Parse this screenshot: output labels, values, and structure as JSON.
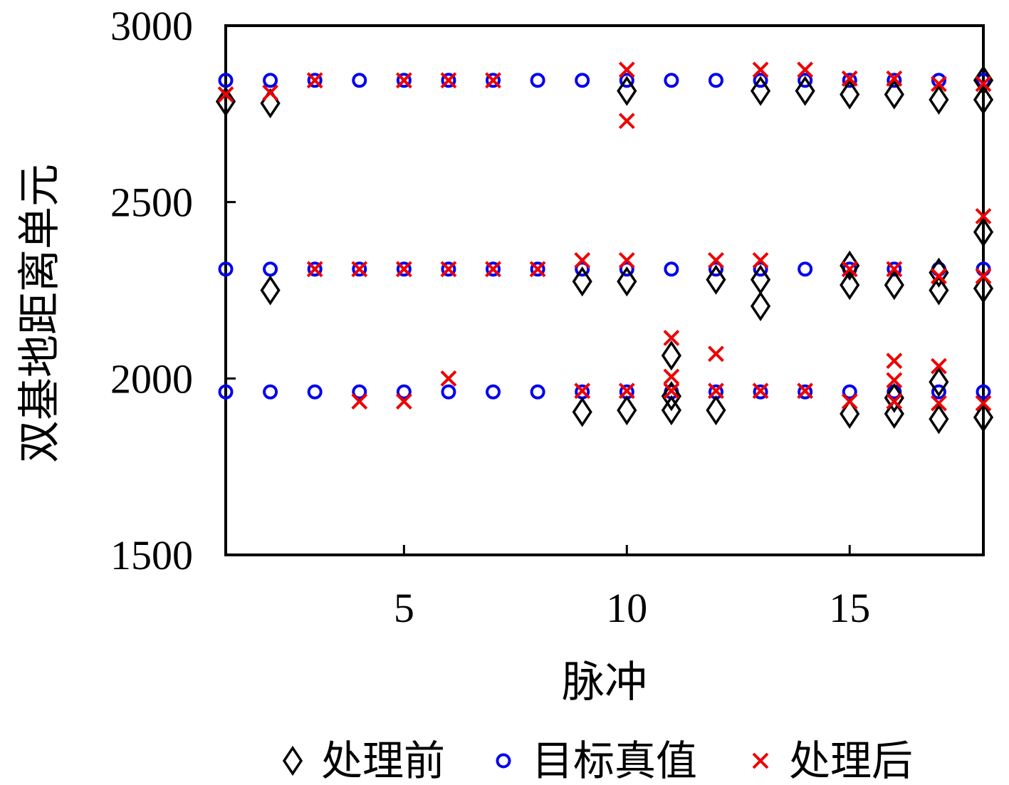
{
  "chart_data": {
    "type": "scatter",
    "title": "",
    "xlabel": "脉冲",
    "ylabel": "双基地距离单元",
    "xlim": [
      1,
      18
    ],
    "ylim": [
      1500,
      3000
    ],
    "xticks": [
      5,
      10,
      15
    ],
    "yticks": [
      1500,
      2000,
      2500,
      3000
    ],
    "grid": false,
    "legend_position": "bottom",
    "series": [
      {
        "name": "处理前",
        "marker": "diamond",
        "color": "#000000",
        "points": [
          [
            1,
            2785
          ],
          [
            2,
            2780
          ],
          [
            2,
            2250
          ],
          [
            9,
            2275
          ],
          [
            9,
            1905
          ],
          [
            10,
            2815
          ],
          [
            10,
            2275
          ],
          [
            10,
            1910
          ],
          [
            11,
            2065
          ],
          [
            11,
            1950
          ],
          [
            11,
            1910
          ],
          [
            12,
            2280
          ],
          [
            12,
            1910
          ],
          [
            13,
            2815
          ],
          [
            13,
            2280
          ],
          [
            13,
            2205
          ],
          [
            14,
            2815
          ],
          [
            15,
            2805
          ],
          [
            15,
            2320
          ],
          [
            15,
            2265
          ],
          [
            15,
            1900
          ],
          [
            16,
            2805
          ],
          [
            16,
            2265
          ],
          [
            16,
            1945
          ],
          [
            16,
            1900
          ],
          [
            17,
            2790
          ],
          [
            17,
            2300
          ],
          [
            17,
            2250
          ],
          [
            17,
            1990
          ],
          [
            17,
            1885
          ],
          [
            18,
            2845
          ],
          [
            18,
            2790
          ],
          [
            18,
            2415
          ],
          [
            18,
            2255
          ],
          [
            18,
            1890
          ]
        ]
      },
      {
        "name": "目标真值",
        "marker": "circle",
        "color": "#0000ee",
        "points": [
          [
            1,
            2845
          ],
          [
            2,
            2845
          ],
          [
            3,
            2845
          ],
          [
            4,
            2845
          ],
          [
            5,
            2845
          ],
          [
            6,
            2845
          ],
          [
            7,
            2845
          ],
          [
            8,
            2845
          ],
          [
            9,
            2845
          ],
          [
            10,
            2845
          ],
          [
            11,
            2845
          ],
          [
            12,
            2845
          ],
          [
            13,
            2845
          ],
          [
            14,
            2845
          ],
          [
            15,
            2845
          ],
          [
            16,
            2845
          ],
          [
            17,
            2845
          ],
          [
            18,
            2845
          ],
          [
            1,
            2310
          ],
          [
            2,
            2310
          ],
          [
            3,
            2310
          ],
          [
            4,
            2310
          ],
          [
            5,
            2310
          ],
          [
            6,
            2310
          ],
          [
            7,
            2310
          ],
          [
            8,
            2310
          ],
          [
            9,
            2310
          ],
          [
            10,
            2310
          ],
          [
            11,
            2310
          ],
          [
            12,
            2310
          ],
          [
            13,
            2310
          ],
          [
            14,
            2310
          ],
          [
            15,
            2310
          ],
          [
            16,
            2310
          ],
          [
            17,
            2310
          ],
          [
            18,
            2310
          ],
          [
            1,
            1962
          ],
          [
            2,
            1962
          ],
          [
            3,
            1962
          ],
          [
            4,
            1962
          ],
          [
            5,
            1962
          ],
          [
            6,
            1962
          ],
          [
            7,
            1962
          ],
          [
            8,
            1962
          ],
          [
            9,
            1962
          ],
          [
            10,
            1962
          ],
          [
            11,
            1962
          ],
          [
            12,
            1962
          ],
          [
            13,
            1962
          ],
          [
            14,
            1962
          ],
          [
            15,
            1962
          ],
          [
            16,
            1962
          ],
          [
            17,
            1962
          ],
          [
            18,
            1962
          ]
        ]
      },
      {
        "name": "处理后",
        "marker": "x",
        "color": "#ee0000",
        "points": [
          [
            1,
            2805
          ],
          [
            2,
            2810
          ],
          [
            3,
            2845
          ],
          [
            5,
            2845
          ],
          [
            6,
            2845
          ],
          [
            7,
            2845
          ],
          [
            10,
            2875
          ],
          [
            10,
            2730
          ],
          [
            13,
            2875
          ],
          [
            14,
            2875
          ],
          [
            15,
            2850
          ],
          [
            16,
            2850
          ],
          [
            17,
            2835
          ],
          [
            18,
            2835
          ],
          [
            3,
            2310
          ],
          [
            4,
            2310
          ],
          [
            5,
            2310
          ],
          [
            6,
            2310
          ],
          [
            7,
            2310
          ],
          [
            8,
            2310
          ],
          [
            9,
            2335
          ],
          [
            10,
            2335
          ],
          [
            12,
            2335
          ],
          [
            13,
            2335
          ],
          [
            15,
            2310
          ],
          [
            16,
            2310
          ],
          [
            17,
            2290
          ],
          [
            18,
            2290
          ],
          [
            18,
            2460
          ],
          [
            4,
            1935
          ],
          [
            5,
            1935
          ],
          [
            6,
            2000
          ],
          [
            9,
            1965
          ],
          [
            10,
            1965
          ],
          [
            11,
            2115
          ],
          [
            11,
            2005
          ],
          [
            11,
            1965
          ],
          [
            12,
            2070
          ],
          [
            12,
            1965
          ],
          [
            13,
            1965
          ],
          [
            14,
            1965
          ],
          [
            15,
            1935
          ],
          [
            16,
            2050
          ],
          [
            16,
            1995
          ],
          [
            16,
            1935
          ],
          [
            17,
            2035
          ],
          [
            17,
            1930
          ],
          [
            18,
            1930
          ]
        ]
      }
    ]
  }
}
